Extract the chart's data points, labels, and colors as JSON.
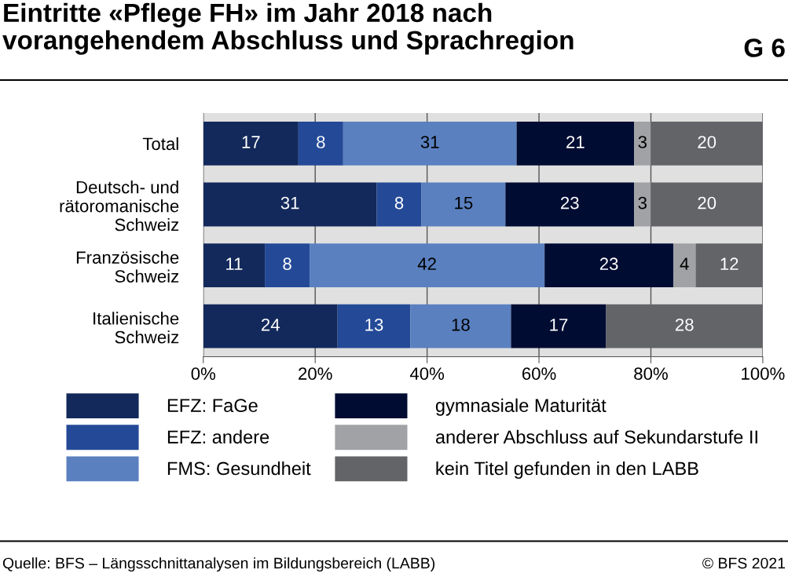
{
  "chart_data": {
    "type": "bar",
    "orientation": "horizontal",
    "stacked": true,
    "title": "Eintritte «Pflege FH» im Jahr 2018 nach\nvorangehendem Abschluss und Sprachregion",
    "categories": [
      "Total",
      "Deutsch- und\nrätoromanische\nSchweiz",
      "Französische\nSchweiz",
      "Italienische\nSchweiz"
    ],
    "series": [
      {
        "name": "EFZ: FaGe",
        "color": "#13295b",
        "values": [
          17,
          31,
          11,
          24
        ]
      },
      {
        "name": "EFZ: andere",
        "color": "#244a97",
        "values": [
          8,
          8,
          8,
          13
        ]
      },
      {
        "name": "FMS: Gesundheit",
        "color": "#5a80c0",
        "values": [
          31,
          15,
          42,
          18
        ]
      },
      {
        "name": "gymnasiale Maturität",
        "color": "#010c33",
        "values": [
          21,
          23,
          23,
          17
        ]
      },
      {
        "name": "anderer Abschluss auf Sekundarstufe II",
        "color": "#a0a2a5",
        "values": [
          3,
          3,
          4,
          null
        ]
      },
      {
        "name": "kein Titel gefunden in den LABB",
        "color": "#636468",
        "values": [
          20,
          20,
          12,
          28
        ]
      }
    ],
    "xlim": [
      0,
      100
    ],
    "xticks": [
      {
        "value": 0,
        "label": "0%"
      },
      {
        "value": 20,
        "label": "20%"
      },
      {
        "value": 40,
        "label": "40%"
      },
      {
        "value": 60,
        "label": "60%"
      },
      {
        "value": 80,
        "label": "80%"
      },
      {
        "value": 100,
        "label": "100%"
      }
    ],
    "grid": "x",
    "legend": "bottom",
    "data_labels": true,
    "annotations": [
      "G 6",
      "Quelle: BFS – Längsschnittanalysen im Bildungsbereich (LABB)",
      "© BFS 2021"
    ]
  }
}
